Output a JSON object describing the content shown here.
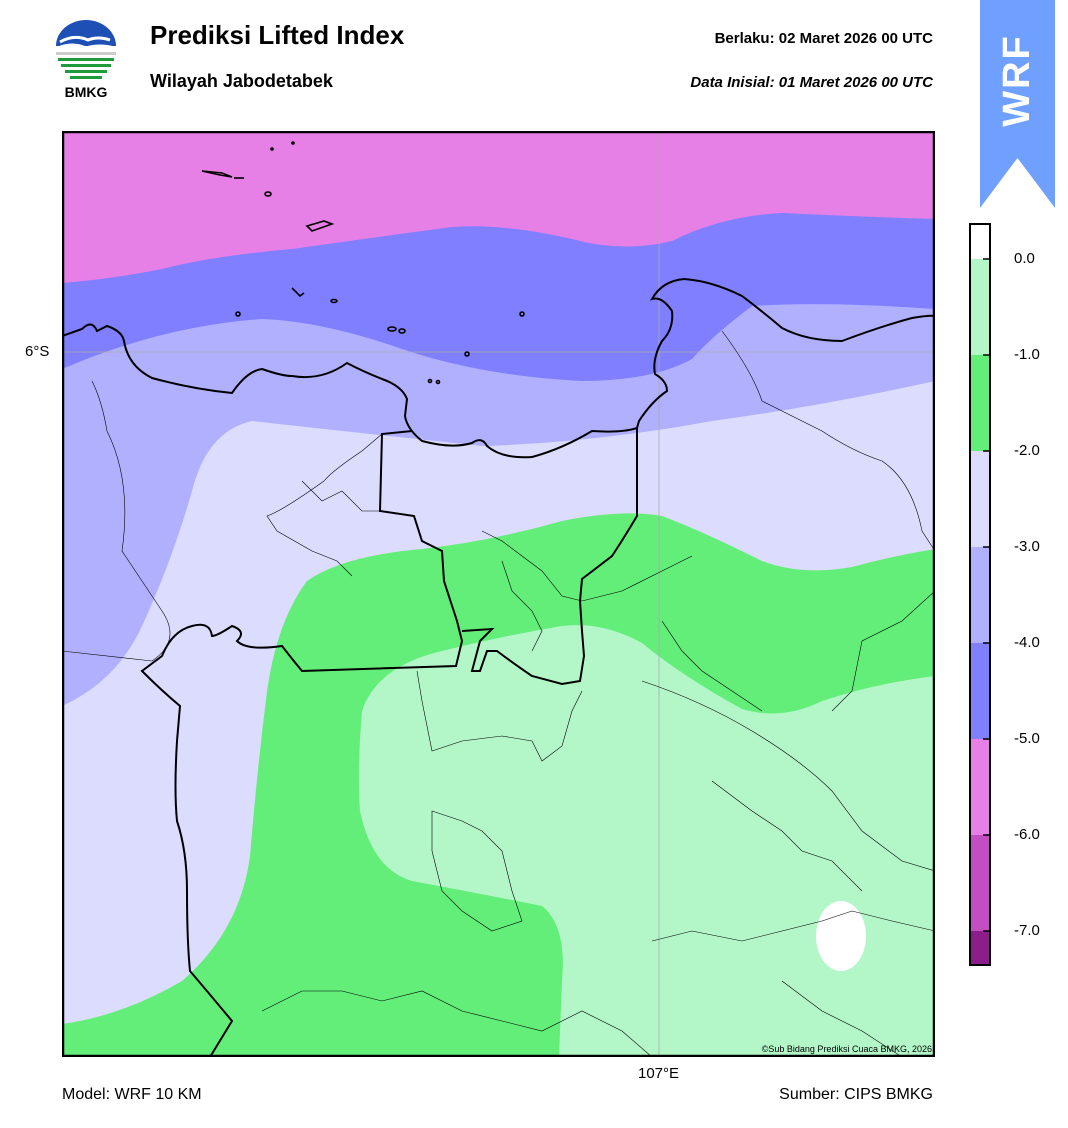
{
  "header": {
    "title": "Prediksi Lifted Index",
    "subtitle": "Wilayah Jabodetabek",
    "valid_label": "Berlaku:  02 Maret 2026 00 UTC",
    "init_label": "Data Inisial:  01 Maret 2026 00 UTC"
  },
  "logo": {
    "text": "BMKG",
    "icon": "bmkg-logo-icon"
  },
  "badge": {
    "text": "WRF",
    "color": "#6fa0ff"
  },
  "map": {
    "lat_label": "6°S",
    "lon_label": "107°E",
    "copyright": "©Sub Bidang Prediksi Cuaca BMKG, 2026"
  },
  "footer": {
    "model": "Model: WRF 10 KM",
    "source": "Sumber: CIPS BMKG"
  },
  "colorbar": {
    "ticks": [
      "0.0",
      "-1.0",
      "-2.0",
      "-3.0",
      "-4.0",
      "-5.0",
      "-6.0",
      "-7.0"
    ],
    "colors": {
      "above_0": "#ffffff",
      "0_to_-1": "#b3f7c9",
      "-1_to_-2": "#63ee79",
      "-2_to_-3": "#dcdcff",
      "-3_to_-4": "#b0b0ff",
      "-4_to_-5": "#7f7fff",
      "-5_to_-6": "#e680e6",
      "-6_to_-7": "#c24ec2",
      "below_-7": "#8b1e8b"
    }
  }
}
